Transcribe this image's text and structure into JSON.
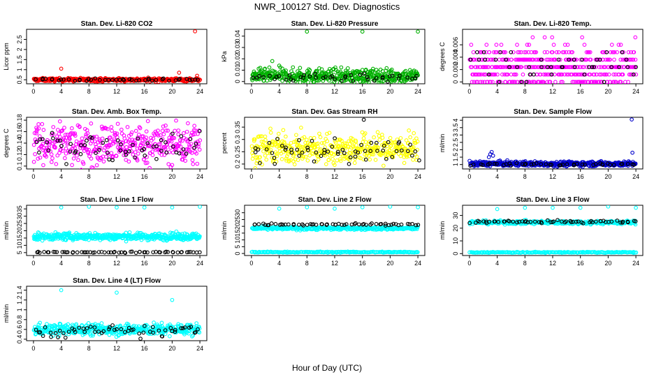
{
  "page": {
    "title": "NWR_100127  Std. Dev. Diagnostics",
    "xlabel": "Hour of Day (UTC)"
  },
  "chart_data": [
    {
      "type": "scatter",
      "title": "Stan. Dev. Li-820 CO2",
      "ylabel": "Licor ppm",
      "xlim": [
        -1,
        25
      ],
      "ylim": [
        0.3,
        3.0
      ],
      "xticks": [
        0,
        4,
        8,
        12,
        16,
        20,
        24
      ],
      "yticks": [
        0.5,
        1.0,
        1.5,
        2.0,
        2.5
      ],
      "series": [
        {
          "color": "#ff0000",
          "density": 420,
          "base": 0.5,
          "spread": 0.04,
          "outliers": [
            [
              4,
              1.05
            ],
            [
              21,
              0.85
            ],
            [
              23.3,
              2.9
            ],
            [
              23.6,
              0.7
            ]
          ]
        },
        {
          "color": "#000000",
          "density": 45,
          "base": 0.5,
          "spread": 0.03,
          "outliers": []
        }
      ]
    },
    {
      "type": "scatter",
      "title": "Stan. Dev. Li-820 Pressure",
      "ylabel": "kPa",
      "xlim": [
        -1,
        25
      ],
      "ylim": [
        -0.002,
        0.046
      ],
      "xticks": [
        0,
        4,
        8,
        12,
        16,
        20,
        24
      ],
      "yticks": [
        0.0,
        0.01,
        0.02,
        0.03,
        0.04
      ],
      "series": [
        {
          "color": "#00b000",
          "density": 460,
          "base": 0.005,
          "spread": 0.003,
          "outliers": [
            [
              8,
              0.044
            ],
            [
              16,
              0.044
            ],
            [
              24,
              0.044
            ],
            [
              3,
              0.018
            ],
            [
              4,
              0.014
            ],
            [
              7,
              0.012
            ]
          ]
        },
        {
          "color": "#000000",
          "density": 45,
          "base": 0.004,
          "spread": 0.002,
          "outliers": []
        }
      ]
    },
    {
      "type": "scatter",
      "title": "Stan. Dev. Li-820 Temp.",
      "ylabel": "degrees C",
      "xlim": [
        -1,
        25
      ],
      "ylim": [
        -0.0003,
        0.0085
      ],
      "xticks": [
        0,
        4,
        8,
        12,
        16,
        20,
        24
      ],
      "yticks": [
        0.0,
        0.002,
        0.004,
        0.006
      ],
      "quantized": [
        0.0,
        0.0012,
        0.0024,
        0.0036,
        0.0048,
        0.006,
        0.0072
      ],
      "series": [
        {
          "color": "#ff00ff",
          "density": 520,
          "base": 0.0024,
          "spread": 0.0018,
          "outliers": []
        },
        {
          "color": "#000000",
          "density": 45,
          "base": 0.0024,
          "spread": 0.0014,
          "outliers": []
        }
      ]
    },
    {
      "type": "scatter",
      "title": "Stan. Dev. Amb. Box Temp.",
      "ylabel": "degrees C",
      "xlim": [
        -1,
        25
      ],
      "ylim": [
        0.095,
        0.185
      ],
      "xticks": [
        0,
        4,
        8,
        12,
        16,
        20,
        24
      ],
      "yticks": [
        0.1,
        0.12,
        0.14,
        0.16,
        0.18
      ],
      "series": [
        {
          "color": "#ff00ff",
          "density": 430,
          "base": 0.138,
          "spread": 0.018,
          "outliers": []
        },
        {
          "color": "#000000",
          "density": 60,
          "base": 0.135,
          "spread": 0.014,
          "outliers": []
        }
      ]
    },
    {
      "type": "scatter",
      "title": "Stan. Dev. Gas Stream RH",
      "ylabel": "percent",
      "xlim": [
        -1,
        25
      ],
      "ylim": [
        0.18,
        0.39
      ],
      "xticks": [
        0,
        4,
        8,
        12,
        16,
        20,
        24
      ],
      "yticks": [
        0.2,
        0.25,
        0.3,
        0.35
      ],
      "series": [
        {
          "color": "#ffff00",
          "density": 430,
          "base": 0.262,
          "spread": 0.03,
          "outliers": []
        },
        {
          "color": "#000000",
          "density": 60,
          "base": 0.255,
          "spread": 0.025,
          "outliers": [
            [
              16.2,
              0.38
            ]
          ]
        }
      ]
    },
    {
      "type": "scatter",
      "title": "Stan. Dev. Sample Flow",
      "ylabel": "ml/min",
      "xlim": [
        -1,
        25
      ],
      "ylim": [
        0.7,
        4.2
      ],
      "xticks": [
        0,
        4,
        8,
        12,
        16,
        20,
        24
      ],
      "yticks": [
        1.0,
        1.5,
        2.0,
        2.5,
        3.0,
        3.5,
        4.0
      ],
      "series": [
        {
          "color": "#0000cc",
          "density": 460,
          "base": 1.05,
          "spread": 0.08,
          "outliers": [
            [
              3.0,
              1.7
            ],
            [
              3.2,
              1.85
            ],
            [
              3.4,
              1.6
            ],
            [
              2.8,
              1.5
            ],
            [
              23.4,
              4.05
            ],
            [
              23.5,
              1.8
            ]
          ]
        },
        {
          "color": "#000000",
          "density": 45,
          "base": 1.0,
          "spread": 0.05,
          "outliers": []
        }
      ]
    },
    {
      "type": "scatter",
      "title": "Stan. Dev. Line 1 Flow",
      "ylabel": "ml/min",
      "xlim": [
        -1,
        25
      ],
      "ylim": [
        3.0,
        37.5
      ],
      "xticks": [
        0,
        4,
        8,
        12,
        16,
        20,
        24
      ],
      "yticks": [
        5,
        10,
        15,
        20,
        25,
        30,
        35
      ],
      "series": [
        {
          "color": "#00ffff",
          "density": 480,
          "base": 16.0,
          "spread": 1.2,
          "outliers": [
            [
              4,
              36
            ],
            [
              8,
              36.5
            ],
            [
              12,
              36
            ],
            [
              16,
              36
            ],
            [
              20,
              36
            ],
            [
              24,
              36.5
            ]
          ]
        },
        {
          "color": "#000000",
          "density": 60,
          "base": 5.3,
          "spread": 0.2,
          "outliers": []
        }
      ]
    },
    {
      "type": "scatter",
      "title": "Stan. Dev. Line 2 Flow",
      "ylabel": "ml/min",
      "xlim": [
        -1,
        25
      ],
      "ylim": [
        -1.5,
        35.5
      ],
      "xticks": [
        0,
        4,
        8,
        12,
        16,
        20,
        24
      ],
      "yticks": [
        0,
        5,
        10,
        15,
        20,
        25,
        30
      ],
      "series": [
        {
          "color": "#00ffff",
          "density": 320,
          "base": 18.5,
          "spread": 0.6,
          "outliers": [
            [
              4,
              33
            ],
            [
              8,
              34
            ],
            [
              12,
              33
            ],
            [
              16,
              34
            ],
            [
              20,
              34.5
            ],
            [
              24,
              34
            ]
          ]
        },
        {
          "color": "#00ffff",
          "density": 200,
          "base": 1.0,
          "spread": 0.2,
          "outliers": []
        },
        {
          "color": "#000000",
          "density": 60,
          "base": 21.5,
          "spread": 0.4,
          "outliers": []
        }
      ]
    },
    {
      "type": "scatter",
      "title": "Stan. Dev. Line 3 Flow",
      "ylabel": "ml/min",
      "xlim": [
        -1,
        25
      ],
      "ylim": [
        -1.5,
        38
      ],
      "xticks": [
        0,
        4,
        8,
        12,
        16,
        20,
        24
      ],
      "yticks": [
        0,
        10,
        20,
        30
      ],
      "series": [
        {
          "color": "#00ffff",
          "density": 320,
          "base": 24.5,
          "spread": 0.7,
          "outliers": [
            [
              4,
              35
            ],
            [
              8,
              36
            ],
            [
              12,
              36
            ],
            [
              16,
              36
            ],
            [
              20,
              37
            ],
            [
              24,
              36
            ]
          ]
        },
        {
          "color": "#00ffff",
          "density": 200,
          "base": 1.0,
          "spread": 0.2,
          "outliers": []
        },
        {
          "color": "#000000",
          "density": 60,
          "base": 25.0,
          "spread": 0.5,
          "outliers": []
        }
      ]
    },
    {
      "type": "scatter",
      "title": "Stan. Dev. Line 4 (LT) Flow",
      "ylabel": "ml/min",
      "xlim": [
        -1,
        25
      ],
      "ylim": [
        0.37,
        1.48
      ],
      "xticks": [
        0,
        4,
        8,
        12,
        16,
        20,
        24
      ],
      "yticks": [
        0.4,
        0.6,
        0.8,
        1.0,
        1.2,
        1.4
      ],
      "series": [
        {
          "color": "#00ffff",
          "density": 440,
          "base": 0.6,
          "spread": 0.06,
          "outliers": [
            [
              4,
              1.4
            ],
            [
              12,
              1.35
            ],
            [
              20,
              1.2
            ]
          ]
        },
        {
          "color": "#000000",
          "density": 60,
          "base": 0.56,
          "spread": 0.06,
          "outliers": []
        }
      ]
    }
  ]
}
